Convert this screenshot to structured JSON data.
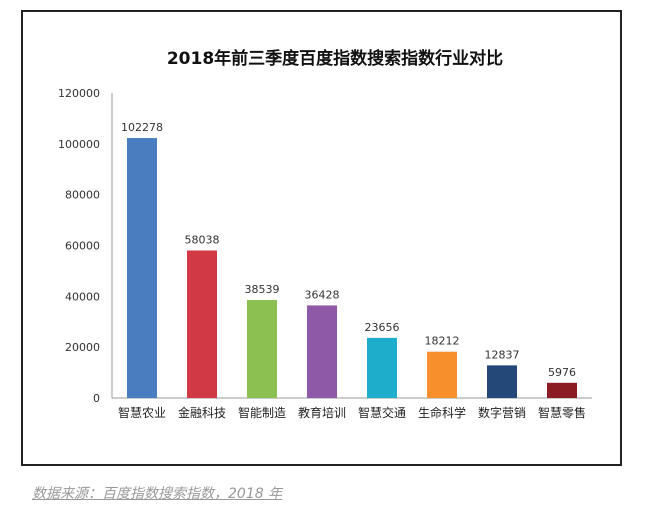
{
  "chart_data": {
    "type": "bar",
    "title": "2018年前三季度百度指数搜索指数行业对比",
    "categories": [
      "智慧农业",
      "金融科技",
      "智能制造",
      "教育培训",
      "智慧交通",
      "生命科学",
      "数字营销",
      "智慧零售"
    ],
    "values": [
      102278,
      58038,
      38539,
      36428,
      23656,
      18212,
      12837,
      5976
    ],
    "colors": [
      "#4a7dc0",
      "#d13a45",
      "#8cc152",
      "#8e5aa8",
      "#1eaecb",
      "#f7902c",
      "#244877",
      "#8b1c24"
    ],
    "ylim": [
      0,
      120000
    ],
    "yticks": [
      0,
      20000,
      40000,
      60000,
      80000,
      100000,
      120000
    ],
    "xlabel": "",
    "ylabel": "",
    "grid": false,
    "data_labels": true
  },
  "source": "数据来源：百度指数搜索指数，2018 年"
}
